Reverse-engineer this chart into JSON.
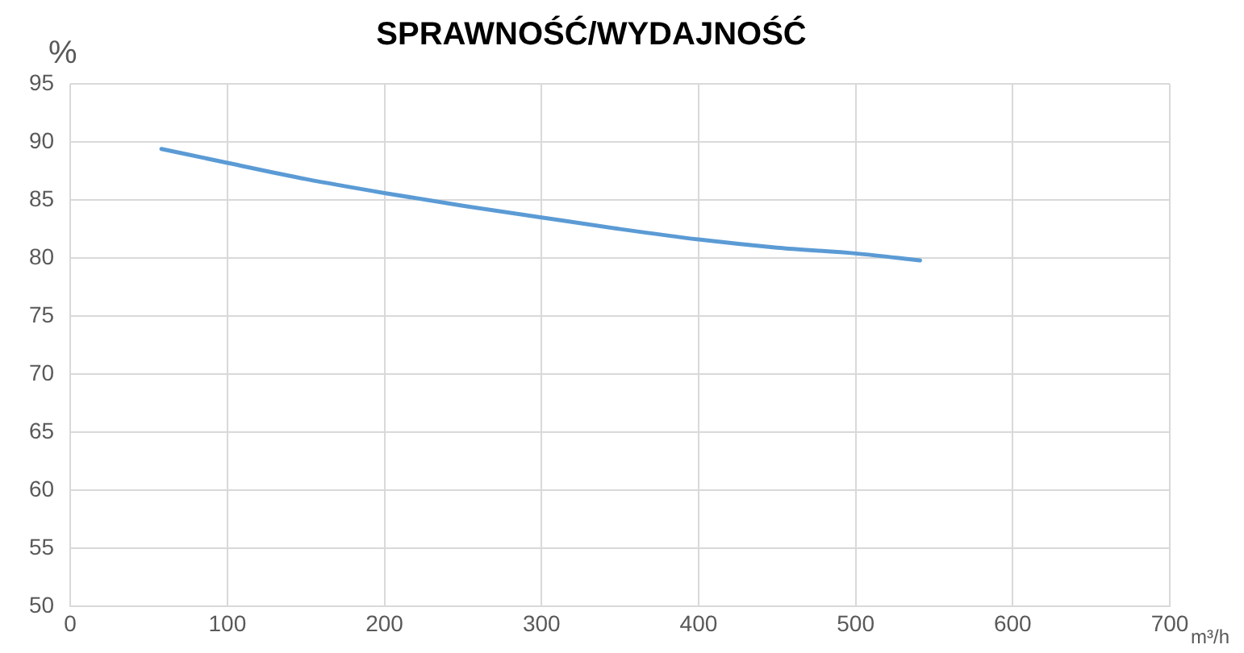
{
  "chart_data": {
    "type": "line",
    "title": "SPRAWNOŚĆ/WYDAJNOŚĆ",
    "xlabel": "m³/h",
    "ylabel": "%",
    "series": [
      {
        "color": "#5b9bd5",
        "x": [
          58,
          100,
          150,
          200,
          250,
          300,
          350,
          400,
          450,
          500,
          541
        ],
        "values": [
          89.4,
          88.2,
          86.8,
          85.6,
          84.5,
          83.5,
          82.5,
          81.6,
          80.9,
          80.4,
          79.8
        ]
      }
    ],
    "xlim": [
      0,
      700
    ],
    "xticks": [
      0,
      100,
      200,
      300,
      400,
      500,
      600,
      700
    ],
    "ylim": [
      50,
      95
    ],
    "yticks": [
      50,
      55,
      60,
      65,
      70,
      75,
      80,
      85,
      90,
      95
    ],
    "grid": true,
    "legend": false,
    "marker": "none",
    "line_style": "solid"
  }
}
